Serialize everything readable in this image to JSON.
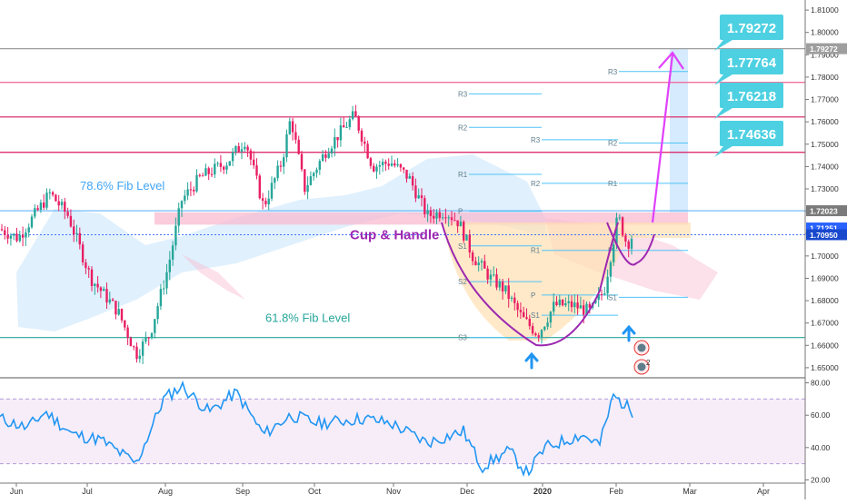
{
  "chart_data": {
    "type": "candlestick",
    "x_labels": [
      "Jun",
      "Jul",
      "Aug",
      "Sep",
      "Oct",
      "Nov",
      "Dec",
      "2020",
      "Feb",
      "Mar",
      "Apr"
    ],
    "price_ticks": [
      "1.81000",
      "1.80000",
      "1.79000",
      "1.78000",
      "1.77000",
      "1.76000",
      "1.75000",
      "1.74000",
      "1.73000",
      "1.72000",
      "1.71000",
      "1.70000",
      "1.69000",
      "1.68000",
      "1.67000",
      "1.66000",
      "1.65000"
    ],
    "price_range": [
      1.6455,
      1.8145
    ],
    "rsi_ticks": [
      "80.00",
      "60.00",
      "40.00",
      "20.00"
    ],
    "rsi_range": [
      18,
      82
    ],
    "rsi_band": [
      30,
      70
    ],
    "price_tags": [
      {
        "label": "1.79272",
        "value": 1.79272,
        "color": "#9e9e9e"
      },
      {
        "label": "1.72023",
        "value": 1.72023,
        "color": "#7a7a7a"
      },
      {
        "label": "1.71251",
        "value": 1.71251,
        "color": "#2962ff"
      },
      {
        "label": "1.70950",
        "value": 1.7095,
        "color": "#1848cc"
      }
    ],
    "horizontal_levels": [
      {
        "value": 1.79272,
        "color": "#9e9e9e"
      },
      {
        "value": 1.77764,
        "color": "#f06292"
      },
      {
        "value": 1.76218,
        "color": "#d81b60"
      },
      {
        "value": 1.74636,
        "color": "#d81b60"
      },
      {
        "value": 1.72023,
        "color": "#64b5f6"
      },
      {
        "value": 1.6635,
        "color": "#26a69a"
      }
    ],
    "target_callouts": [
      "1.79272",
      "1.77764",
      "1.76218",
      "1.74636"
    ],
    "pivot_labels": [
      "R3",
      "R2",
      "R1",
      "P",
      "S1",
      "S2",
      "S3",
      "R3",
      "R2",
      "R1",
      "P",
      "S1",
      "R3",
      "R2",
      "R1",
      "P",
      "S1"
    ],
    "annotations": {
      "fib_786": "78.6% Fib Level",
      "fib_618": "61.8% Fib Level",
      "pattern": "Cup & Handle"
    },
    "event_badges": [
      "2"
    ],
    "colors": {
      "bull": "#26a69a",
      "bear": "#e91e63",
      "pattern_text": "#9c27b0",
      "callout": "#4dd0e1",
      "rsi_line": "#2196f3",
      "arrow_up": "#2196f3"
    }
  }
}
